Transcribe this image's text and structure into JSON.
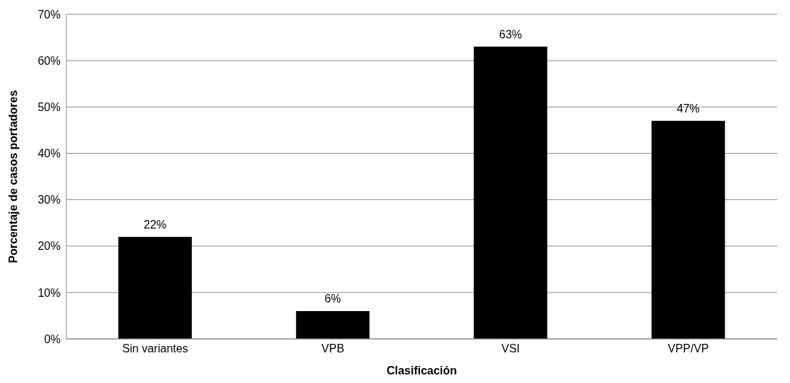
{
  "chart_data": {
    "type": "bar",
    "xlabel": "Clasificación",
    "ylabel": "Porcentaje de casos portadores",
    "categories": [
      "Sin variantes",
      "VPB",
      "VSI",
      "VPP/VP"
    ],
    "values": [
      22,
      6,
      63,
      47
    ],
    "value_labels": [
      "22%",
      "6%",
      "63%",
      "47%"
    ],
    "color": "#000000",
    "ylim": [
      0,
      70
    ],
    "yticks": [
      {
        "value": 0,
        "label": "0%"
      },
      {
        "value": 10,
        "label": "10%"
      },
      {
        "value": 20,
        "label": "20%"
      },
      {
        "value": 30,
        "label": "30%"
      },
      {
        "value": 40,
        "label": "40%"
      },
      {
        "value": 50,
        "label": "50%"
      },
      {
        "value": 60,
        "label": "60%"
      },
      {
        "value": 70,
        "label": "70%"
      }
    ],
    "grid": "y",
    "legend": false
  }
}
